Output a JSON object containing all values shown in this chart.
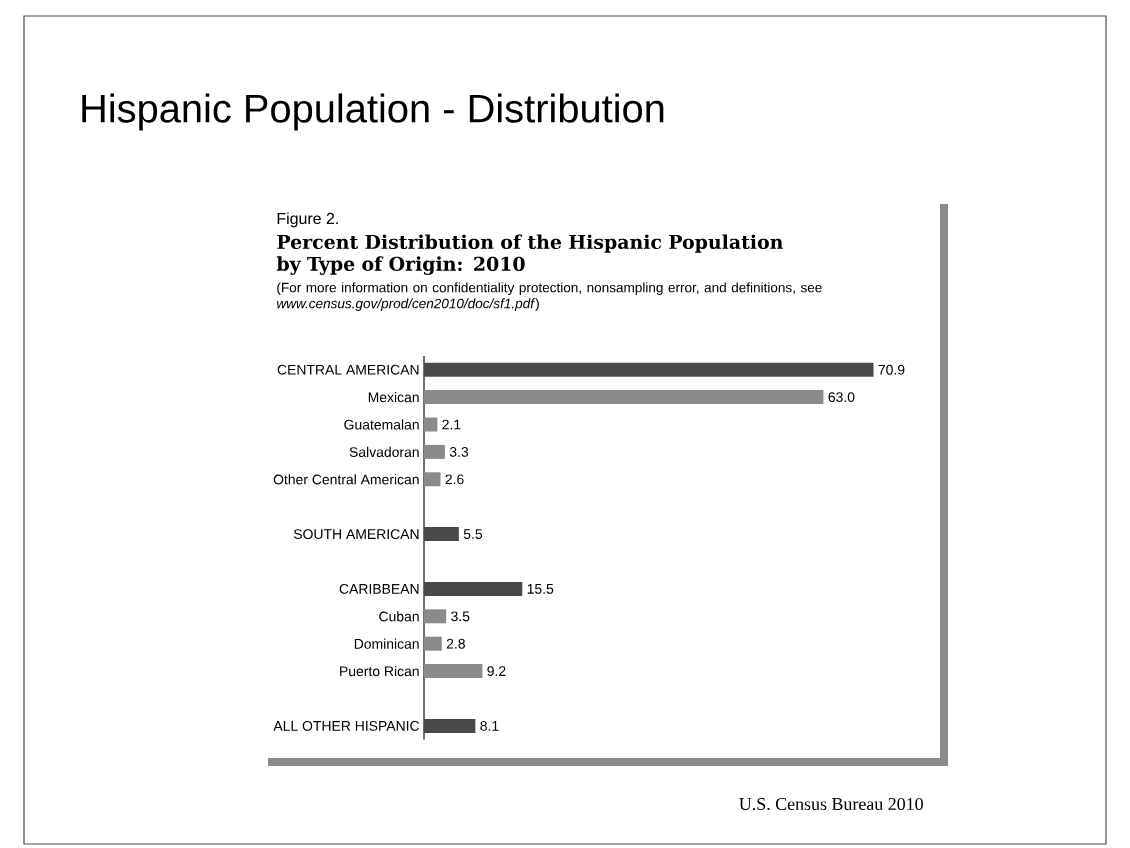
{
  "chart_data": {
    "type": "bar",
    "orientation": "horizontal",
    "title": "Hispanic Population - Distribution",
    "subtitle": "Percent Distribution of the Hispanic Population by Type of Origin: 2010",
    "annotations": [
      "Figure 2.",
      "(For more information on confidentiality protection, nonsampling error, and definitions, see *www.census.gov/prod/cen2010/doc/sf1.pdf*)",
      "U.S. Census Bureau 2010"
    ],
    "categories": [
      "CENTRAL AMERICAN",
      "Mexican",
      "Guatemalan",
      "Salvadoran",
      "Other Central American",
      null,
      "SOUTH AMERICAN",
      null,
      "CARIBBEAN",
      "Cuban",
      "Dominican",
      "Puerto Rican",
      null,
      "ALL OTHER HISPANIC"
    ],
    "values": [
      70.9,
      63.0,
      2.1,
      3.3,
      2.6,
      null,
      5.5,
      null,
      15.5,
      3.5,
      2.8,
      9.2,
      null,
      8.1
    ],
    "colors": [
      "#4a4a4a",
      "#8a8a8a",
      "#8a8a8a",
      "#8a8a8a",
      "#8a8a8a",
      null,
      "#4a4a4a",
      null,
      "#4a4a4a",
      "#8a8a8a",
      "#8a8a8a",
      "#8a8a8a",
      null,
      "#4a4a4a"
    ],
    "value_labels": [
      "70.9",
      "63.0",
      "2.1",
      "3.3",
      "2.6",
      null,
      "5.5",
      null,
      "15.5",
      "3.5",
      "2.8",
      "9.2",
      null,
      "8.1"
    ]
  }
}
